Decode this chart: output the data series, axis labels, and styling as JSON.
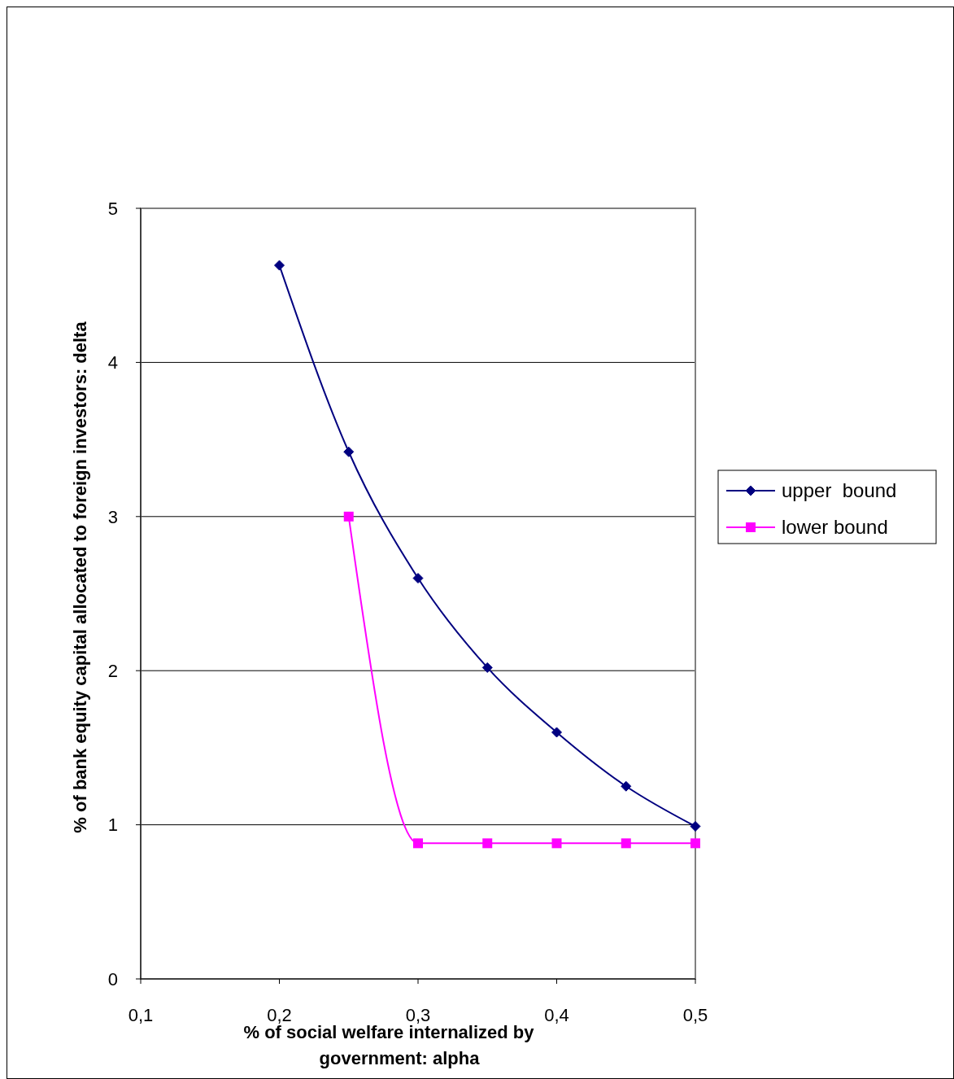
{
  "chart_data": {
    "type": "line",
    "xlabel": "% of social welfare internalized by government: alpha",
    "ylabel": "% of bank equity capital allocated to foreign investors: delta",
    "xlim": [
      0.1,
      0.5
    ],
    "ylim": [
      0,
      5
    ],
    "xticks": [
      {
        "value": 0.1,
        "label": "0,1"
      },
      {
        "value": 0.2,
        "label": "0,2"
      },
      {
        "value": 0.3,
        "label": "0,3"
      },
      {
        "value": 0.4,
        "label": "0,4"
      },
      {
        "value": 0.5,
        "label": "0,5"
      }
    ],
    "yticks": [
      0,
      1,
      2,
      3,
      4,
      5
    ],
    "grid": "y",
    "legend": "right",
    "line_style": "solid",
    "series": [
      {
        "name": "upper  bound",
        "color": "#000080",
        "marker": "diamond",
        "x": [
          0.2,
          0.25,
          0.3,
          0.35,
          0.4,
          0.45,
          0.5
        ],
        "values": [
          4.63,
          3.42,
          2.6,
          2.02,
          1.6,
          1.25,
          0.99
        ]
      },
      {
        "name": "lower bound",
        "color": "#ff00ff",
        "marker": "square",
        "x": [
          0.25,
          0.3,
          0.35,
          0.4,
          0.45,
          0.5
        ],
        "values": [
          3.0,
          0.88,
          0.88,
          0.88,
          0.88,
          0.88
        ]
      }
    ]
  }
}
